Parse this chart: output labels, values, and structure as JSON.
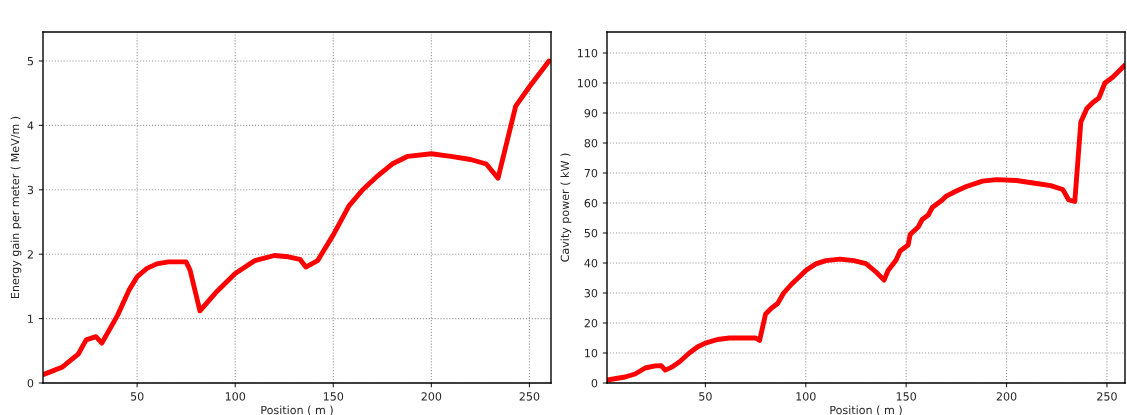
{
  "chart_data": [
    {
      "type": "line",
      "xlabel": "Position ( m )",
      "ylabel": "Energy gain per meter ( MeV/m )",
      "xlim": [
        2,
        261
      ],
      "ylim": [
        0,
        5.45
      ],
      "xticks": [
        50,
        100,
        150,
        200,
        250
      ],
      "yticks": [
        0,
        1,
        2,
        3,
        4,
        5
      ],
      "grid": true,
      "marker": "none",
      "line_style": "solid",
      "series": [
        {
          "color": "#ff0000",
          "x": [
            2,
            8,
            12,
            16,
            20,
            24,
            29,
            32,
            35,
            40,
            46,
            50,
            55,
            60,
            66,
            75,
            77,
            82,
            90,
            100,
            110,
            120,
            127,
            133,
            136,
            142,
            150,
            158,
            165,
            172,
            180,
            188,
            200,
            210,
            220,
            228,
            234,
            243,
            250,
            260
          ],
          "values": [
            0.13,
            0.2,
            0.25,
            0.35,
            0.45,
            0.67,
            0.72,
            0.62,
            0.78,
            1.05,
            1.45,
            1.65,
            1.78,
            1.85,
            1.88,
            1.88,
            1.75,
            1.12,
            1.4,
            1.7,
            1.9,
            1.98,
            1.96,
            1.92,
            1.8,
            1.9,
            2.3,
            2.75,
            3.0,
            3.2,
            3.4,
            3.52,
            3.56,
            3.52,
            3.47,
            3.4,
            3.18,
            4.3,
            4.6,
            5.0
          ]
        }
      ]
    },
    {
      "type": "line",
      "xlabel": "Position ( m )",
      "ylabel": "Cavity power ( kW )",
      "xlim": [
        1,
        259
      ],
      "ylim": [
        0,
        117
      ],
      "xticks": [
        50,
        100,
        150,
        200,
        250
      ],
      "yticks": [
        0,
        10,
        20,
        30,
        40,
        50,
        60,
        70,
        80,
        90,
        100,
        110
      ],
      "grid": true,
      "marker": "none",
      "line_style": "solid",
      "series": [
        {
          "color": "#ff0000",
          "x": [
            1,
            10,
            15,
            20,
            25,
            28,
            30,
            33,
            37,
            42,
            46,
            50,
            56,
            62,
            70,
            75,
            77,
            80,
            83,
            86,
            89,
            93,
            97,
            100,
            105,
            110,
            117,
            124,
            130,
            135,
            139,
            141,
            145,
            147,
            151,
            152,
            156,
            158,
            161,
            163,
            168,
            170,
            175,
            180,
            188,
            195,
            205,
            215,
            222,
            228,
            231,
            234,
            237,
            240,
            243,
            246,
            249,
            253,
            259
          ],
          "values": [
            1,
            2,
            3,
            5,
            5.7,
            5.8,
            4.3,
            5.2,
            7,
            10,
            12,
            13.3,
            14.5,
            15,
            15,
            15,
            14.2,
            23,
            25,
            26.5,
            30,
            33,
            35.5,
            37.5,
            39.7,
            40.8,
            41.3,
            40.8,
            39.8,
            37,
            34.3,
            37.5,
            41,
            44,
            46,
            49.5,
            52,
            54.5,
            56,
            58.5,
            61,
            62.3,
            64,
            65.5,
            67.3,
            67.8,
            67.5,
            66.5,
            65.8,
            64.5,
            61,
            60.5,
            87,
            91.5,
            93.5,
            95,
            100,
            102,
            106
          ]
        }
      ]
    }
  ]
}
